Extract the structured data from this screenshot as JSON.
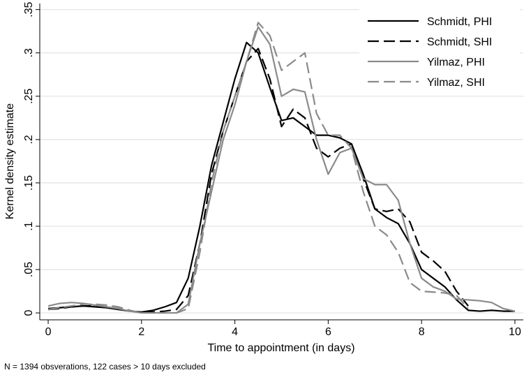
{
  "chart_data": {
    "type": "line",
    "x_label": "Time to appointment (in days)",
    "y_label": "Kernel density estimate",
    "note": "N = 1394 obsverations, 122 cases > 10 days excluded",
    "x": [
      0,
      0.25,
      0.5,
      0.75,
      1,
      1.25,
      1.5,
      1.75,
      2,
      2.25,
      2.5,
      2.75,
      3,
      3.25,
      3.5,
      3.75,
      4,
      4.25,
      4.5,
      4.75,
      5,
      5.25,
      5.5,
      5.75,
      6,
      6.25,
      6.5,
      6.75,
      7,
      7.25,
      7.5,
      7.75,
      8,
      8.25,
      8.5,
      8.75,
      9,
      9.25,
      9.5,
      9.75,
      10
    ],
    "series": [
      {
        "name": "Schmidt, PHI",
        "color": "#000000",
        "dashed": false,
        "values": [
          0.005,
          0.006,
          0.007,
          0.008,
          0.007,
          0.006,
          0.004,
          0.002,
          0.001,
          0.003,
          0.007,
          0.012,
          0.04,
          0.1,
          0.17,
          0.22,
          0.27,
          0.312,
          0.3,
          0.26,
          0.222,
          0.225,
          0.215,
          0.205,
          0.205,
          0.202,
          0.195,
          0.16,
          0.12,
          0.11,
          0.103,
          0.08,
          0.05,
          0.04,
          0.03,
          0.015,
          0.003,
          0.002,
          0.003,
          0.002,
          0.002
        ]
      },
      {
        "name": "Schmidt, SHI",
        "color": "#000000",
        "dashed": true,
        "values": [
          0.004,
          0.005,
          0.007,
          0.008,
          0.008,
          0.007,
          0.005,
          0.002,
          0.001,
          0.001,
          0.002,
          0.004,
          0.02,
          0.08,
          0.16,
          0.21,
          0.25,
          0.29,
          0.305,
          0.27,
          0.215,
          0.235,
          0.225,
          0.19,
          0.18,
          0.19,
          0.195,
          0.155,
          0.12,
          0.117,
          0.12,
          0.105,
          0.07,
          0.06,
          0.048,
          0.025,
          0.008,
          null,
          null,
          null,
          null
        ]
      },
      {
        "name": "Yilmaz, PHI",
        "color": "#8a8a8a",
        "dashed": false,
        "values": [
          0.008,
          0.011,
          0.012,
          0.011,
          0.009,
          0.007,
          0.005,
          0.002,
          0,
          0,
          0,
          0,
          0.01,
          0.08,
          0.14,
          0.2,
          0.24,
          0.29,
          0.33,
          0.31,
          0.25,
          0.258,
          0.255,
          0.2,
          0.16,
          0.185,
          0.19,
          0.155,
          0.148,
          0.148,
          0.13,
          0.08,
          0.04,
          0.03,
          0.025,
          0.016,
          0.015,
          0.014,
          0.012,
          0.005,
          0.002
        ]
      },
      {
        "name": "Yilmaz, SHI",
        "color": "#8a8a8a",
        "dashed": true,
        "values": [
          0.004,
          0.006,
          0.008,
          0.01,
          0.01,
          0.009,
          0.007,
          0.003,
          0,
          0,
          0,
          0,
          0.005,
          0.07,
          0.15,
          0.21,
          0.25,
          0.29,
          0.335,
          0.32,
          0.28,
          0.29,
          0.3,
          0.23,
          0.205,
          0.205,
          0.19,
          0.14,
          0.1,
          0.09,
          0.07,
          0.035,
          0.025,
          0.024,
          0.023,
          0.02,
          0.005,
          null,
          null,
          null,
          null
        ]
      }
    ],
    "xlim": [
      -0.18,
      10.18
    ],
    "ylim": [
      -0.008,
      0.357
    ],
    "xticks": [
      0,
      2,
      4,
      6,
      8,
      10
    ],
    "yticks": [
      0,
      {
        "value": 0.05,
        "label": ".05"
      },
      {
        "value": 0.1,
        "label": ".1"
      },
      {
        "value": 0.15,
        "label": ".15"
      },
      {
        "value": 0.2,
        "label": ".2"
      },
      {
        "value": 0.25,
        "label": ".25"
      },
      {
        "value": 0.3,
        "label": ".3"
      },
      {
        "value": 0.35,
        "label": ".35"
      }
    ],
    "grid": true,
    "legend": "top-right"
  }
}
